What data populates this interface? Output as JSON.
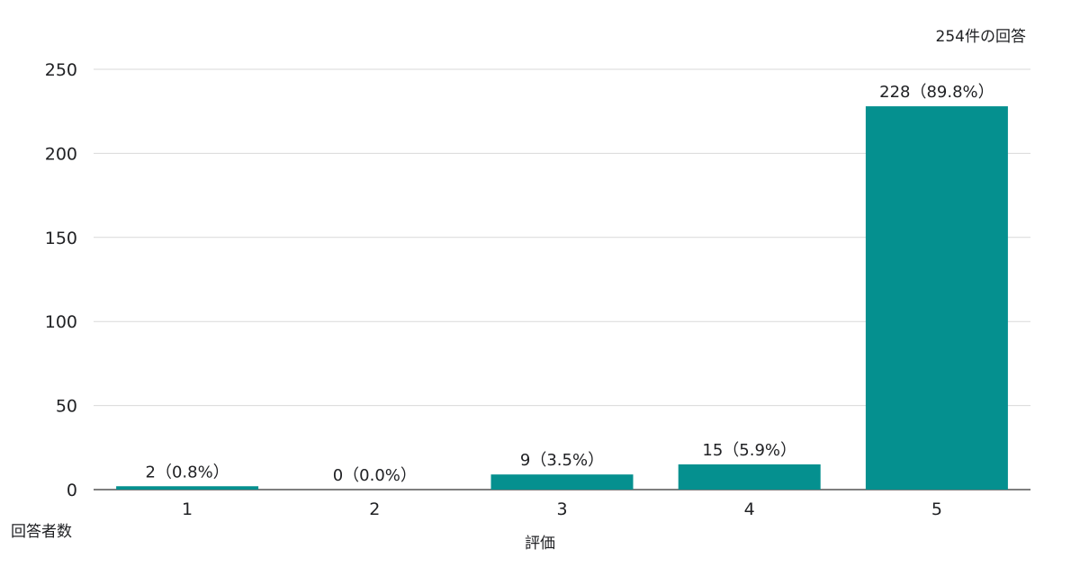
{
  "chart_data": {
    "type": "bar",
    "subtitle": "254件の回答",
    "xlabel": "評価",
    "ylabel": "回答者数",
    "categories": [
      "1",
      "2",
      "3",
      "4",
      "5"
    ],
    "values": [
      2,
      0,
      9,
      15,
      228
    ],
    "data_labels": [
      "2（0.8%）",
      "0（0.0%）",
      "9（3.5%）",
      "15（5.9%）",
      "228（89.8%）"
    ],
    "yticks": [
      0,
      50,
      100,
      150,
      200,
      250
    ],
    "ylim": [
      0,
      250
    ],
    "grid": true,
    "bar_color": "#05908f",
    "grid_color": "#d9d9d9"
  }
}
